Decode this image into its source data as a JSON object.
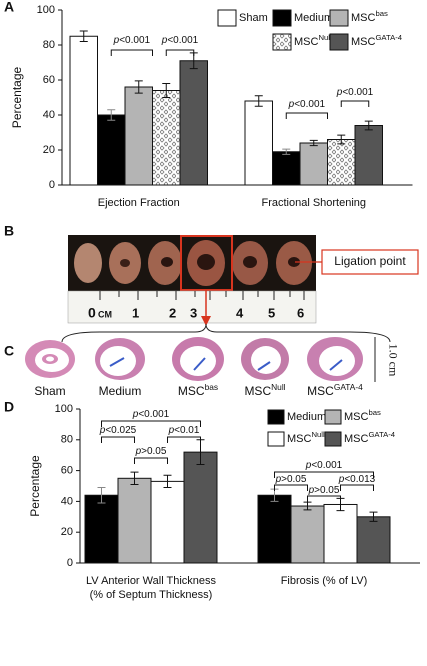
{
  "figure": {
    "panel_labels": [
      "A",
      "B",
      "C",
      "D"
    ],
    "ruler_labels": [
      "0",
      "CM",
      "1",
      "2",
      "3",
      "4",
      "5",
      "6"
    ],
    "ligation_label": "Ligation point",
    "histology_labels": [
      {
        "text": "Sham"
      },
      {
        "text": "Medium"
      },
      {
        "text": "MSC",
        "sup": "bas"
      },
      {
        "text": "MSC",
        "sup": "Null"
      },
      {
        "text": "MSC",
        "sup": "GATA-4"
      }
    ],
    "scale_bar_label": "1.0 cm"
  },
  "chart_data": [
    {
      "type": "bar",
      "ylabel": "Percentage",
      "categories": [
        "Ejection Fraction",
        "Fractional Shortening"
      ],
      "ylim": [
        0,
        100
      ],
      "yticks": [
        0,
        20,
        40,
        60,
        80,
        100
      ],
      "series": [
        {
          "name": "Sham",
          "color": "#ffffff",
          "values": [
            85,
            48
          ],
          "errors": [
            3,
            3
          ]
        },
        {
          "name": "Medium",
          "color": "#000000",
          "values": [
            40,
            19
          ],
          "errors": [
            3,
            1.5
          ]
        },
        {
          "name": "MSC",
          "name_sup": "bas",
          "color": "#b4b4b4",
          "values": [
            56,
            24
          ],
          "errors": [
            3.5,
            1.5
          ]
        },
        {
          "name": "MSC",
          "name_sup": "Null",
          "color": "#ffffff",
          "pattern": "dots",
          "values": [
            54,
            26
          ],
          "errors": [
            4,
            2.5
          ]
        },
        {
          "name": "MSC",
          "name_sup": "GATA-4",
          "color": "#555555",
          "values": [
            71,
            34
          ],
          "errors": [
            4.5,
            2.5
          ]
        }
      ],
      "annotations": [
        "p<0.001",
        "p<0.001",
        "p<0.001",
        "p<0.001"
      ]
    },
    {
      "type": "bar",
      "ylabel": "Percentage",
      "categories": [
        "LV Anterior Wall Thickness\n(% of  Septum Thickness)",
        "Fibrosis (% of LV)"
      ],
      "ylim": [
        0,
        100
      ],
      "yticks": [
        0,
        20,
        40,
        60,
        80,
        100
      ],
      "series": [
        {
          "name": "Medium",
          "color": "#000000",
          "values": [
            44,
            44
          ],
          "errors": [
            5,
            4
          ]
        },
        {
          "name": "MSC",
          "name_sup": "bas",
          "color": "#b4b4b4",
          "values": [
            55,
            37
          ],
          "errors": [
            4,
            2.5
          ]
        },
        {
          "name": "MSC",
          "name_sup": "Null",
          "color": "#ffffff",
          "values": [
            53,
            38
          ],
          "errors": [
            4,
            4
          ]
        },
        {
          "name": "MSC",
          "name_sup": "GATA-4",
          "color": "#555555",
          "values": [
            72,
            30
          ],
          "errors": [
            8,
            3
          ]
        }
      ],
      "annotations": [
        "p<0.001",
        "p<0.025",
        "p<0.01",
        "p>0.05",
        "p<0.001",
        "p>0.05",
        "p<0.013",
        "p>0.05"
      ]
    }
  ]
}
